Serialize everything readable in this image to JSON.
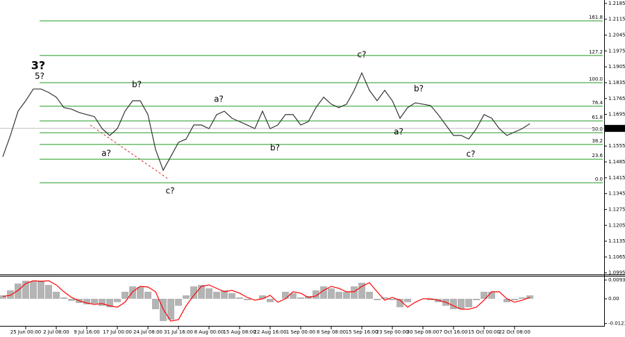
{
  "chart_data": [
    {
      "type": "line",
      "categories": [
        null,
        null,
        null,
        "25 Jun 00:00",
        null,
        null,
        null,
        "2 Jul 08:00",
        null,
        null,
        null,
        "9 Jul 16:00",
        null,
        null,
        null,
        "17 Jul 00:00",
        null,
        null,
        null,
        "24 Jul 08:00",
        null,
        null,
        null,
        "31 Jul 16:00",
        null,
        null,
        null,
        "8 Aug 00:00",
        null,
        null,
        null,
        "15 Aug 08:00",
        null,
        null,
        null,
        "22 Aug 16:00",
        null,
        null,
        null,
        "1 Sep 00:00",
        null,
        null,
        null,
        "8 Sep 08:00",
        null,
        null,
        null,
        "15 Sep 16:00",
        null,
        null,
        null,
        "23 Sep 00:00",
        null,
        null,
        null,
        "30 Sep 08:00",
        null,
        null,
        null,
        "7 Oct 16:00",
        null,
        null,
        null,
        "15 Oct 00:00",
        null,
        null,
        null,
        "22 Oct 08:00",
        null,
        null
      ],
      "series": [
        {
          "color": "#333333",
          "values": [
            1.1508,
            1.1602,
            1.1709,
            1.1755,
            1.1807,
            1.1807,
            1.1792,
            1.1771,
            1.1725,
            1.1718,
            1.1703,
            1.1694,
            1.1685,
            1.1632,
            1.1602,
            1.1632,
            1.1709,
            1.1755,
            1.1755,
            1.1694,
            1.154,
            1.1448,
            1.1509,
            1.1571,
            1.1586,
            1.1648,
            1.1648,
            1.1632,
            1.1694,
            1.1709,
            1.1678,
            1.1663,
            1.1648,
            1.1632,
            1.1709,
            1.1632,
            1.1648,
            1.1694,
            1.1694,
            1.1648,
            1.1663,
            1.1725,
            1.1771,
            1.174,
            1.1725,
            1.174,
            1.1801,
            1.1878,
            1.1801,
            1.1755,
            1.1801,
            1.1755,
            1.1678,
            1.1725,
            1.1746,
            1.174,
            1.1734,
            1.1694,
            1.1648,
            1.1602,
            1.1602,
            1.1586,
            1.1632,
            1.1694,
            1.1678,
            1.1632,
            1.1602,
            1.1617,
            1.1632,
            1.1654
          ]
        }
      ],
      "ylim": [
        1.0988,
        1.22
      ],
      "yticks": [
        1.2185,
        1.2115,
        1.2045,
        1.1975,
        1.1905,
        1.1835,
        1.1765,
        1.1695,
        1.1555,
        1.1485,
        1.1415,
        1.1345,
        1.1275,
        1.1205,
        1.1135,
        1.1065,
        1.0995
      ],
      "current_price": 1.1633,
      "fib_color": "#1e9a1e",
      "fib_levels": [
        {
          "value": 1.2108,
          "label": "161.8"
        },
        {
          "value": 1.1955,
          "label": "127.2"
        },
        {
          "value": 1.1835,
          "label": "100.0"
        },
        {
          "value": 1.1731,
          "label": "76.4"
        },
        {
          "value": 1.1666,
          "label": "61.8"
        },
        {
          "value": 1.1614,
          "label": "50.0"
        },
        {
          "value": 1.1562,
          "label": "38.2"
        },
        {
          "value": 1.1497,
          "label": "23.6"
        },
        {
          "value": 1.1393,
          "label": "0.0"
        }
      ],
      "annotations": [
        {
          "text": "3?",
          "color": "#0000ee"
        },
        {
          "text": "5?",
          "color": "#e02020"
        },
        {
          "text": "a?",
          "color": "#e02020"
        },
        {
          "text": "b?",
          "color": "#e02020"
        },
        {
          "text": "c?",
          "color": "#e02020"
        },
        {
          "text": "a?",
          "color": "#e02020"
        },
        {
          "text": "b?",
          "color": "#e02020"
        },
        {
          "text": "c?",
          "color": "#e02020"
        },
        {
          "text": "a?",
          "color": "#e02020"
        },
        {
          "text": "b?",
          "color": "#e02020"
        },
        {
          "text": "c?",
          "color": "#e02020"
        }
      ]
    },
    {
      "type": "bar",
      "series": [
        {
          "color": "#b4b4b4",
          "values": [
            0.0017,
            0.0042,
            0.0076,
            0.009,
            0.0087,
            0.009,
            0.0069,
            0.0035,
            0.0007,
            -0.001,
            -0.0021,
            -0.0028,
            -0.0024,
            -0.0035,
            -0.0042,
            -0.0017,
            0.0035,
            0.0062,
            0.0059,
            0.0035,
            -0.0052,
            -0.0111,
            -0.0104,
            -0.0035,
            0.0017,
            0.0062,
            0.0069,
            0.0052,
            0.0035,
            0.0042,
            0.0028,
            0.0007,
            -0.0007,
            0,
            0.0017,
            -0.0017,
            0,
            0.0035,
            0.0028,
            0.0007,
            0.0014,
            0.0042,
            0.0062,
            0.0052,
            0.0035,
            0.0035,
            0.0062,
            0.008,
            0.0035,
            -0.0007,
            0.0007,
            -0.0007,
            -0.0042,
            -0.0017,
            0,
            0,
            -0.0007,
            -0.0017,
            -0.0035,
            -0.0052,
            -0.0052,
            -0.0042,
            -0.0007,
            0.0035,
            0.0035,
            0,
            -0.0017,
            -0.0007,
            0.0007,
            0.0017
          ]
        },
        {
          "color": "#ff0000",
          "line": true,
          "values": [
            0.0012,
            0.0017,
            0.0042,
            0.0076,
            0.009,
            0.0087,
            0.009,
            0.0069,
            0.0035,
            0.0007,
            -0.001,
            -0.0021,
            -0.0028,
            -0.0024,
            -0.0035,
            -0.0042,
            -0.0017,
            0.0035,
            0.0062,
            0.0059,
            0.0035,
            -0.0052,
            -0.0111,
            -0.0104,
            -0.0035,
            0.0017,
            0.0062,
            0.0069,
            0.0052,
            0.0035,
            0.0042,
            0.0028,
            0.0007,
            -0.0007,
            0,
            0.0017,
            -0.0017,
            0,
            0.0035,
            0.0028,
            0.0007,
            0.0014,
            0.0042,
            0.0062,
            0.0052,
            0.0035,
            0.0035,
            0.0062,
            0.008,
            0.0035,
            -0.0007,
            0.0007,
            -0.0007,
            -0.0042,
            -0.0017,
            0,
            0,
            -0.0007,
            -0.0017,
            -0.0035,
            -0.0052,
            -0.0052,
            -0.0042,
            -0.0007,
            0.0035,
            0.0035,
            0,
            -0.0017,
            -0.0007,
            0.0007
          ]
        }
      ],
      "ylim": [
        -0.01385,
        0.01143
      ],
      "yticks": [
        0.00935,
        {
          "value": 0,
          "label": "0.00"
        },
        -0.01234
      ]
    }
  ]
}
